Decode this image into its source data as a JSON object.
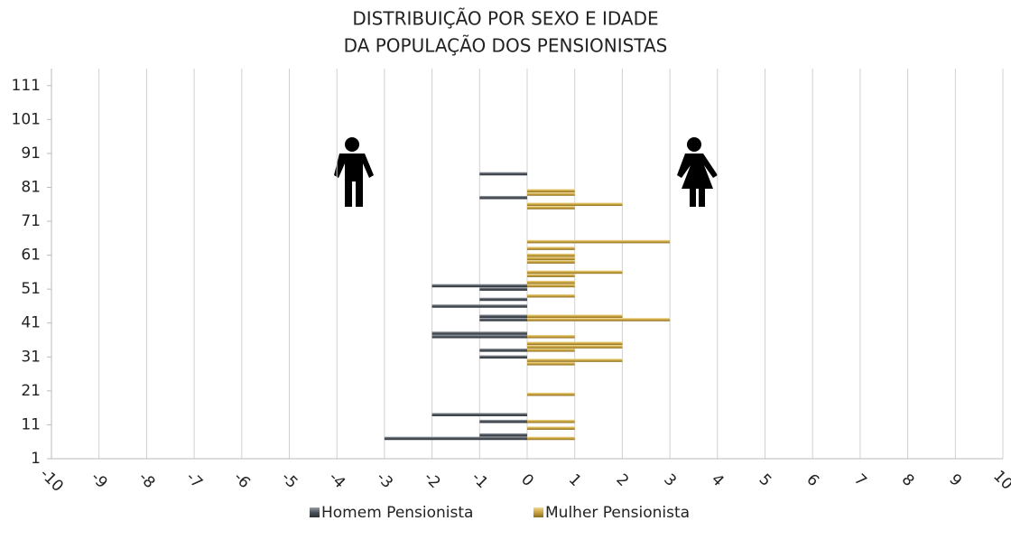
{
  "chart_data": {
    "type": "bar",
    "orientation": "horizontal",
    "title": "DISTRIBUIÇÃO POR SEXO E IDADE",
    "subtitle": "DA POPULAÇÃO DOS PENSIONISTAS",
    "xlim": [
      -10,
      10
    ],
    "xticks": [
      -10,
      -9,
      -8,
      -7,
      -6,
      -5,
      -4,
      -3,
      -2,
      -1,
      0,
      1,
      2,
      3,
      4,
      5,
      6,
      7,
      8,
      9,
      10
    ],
    "ylim": [
      1,
      116
    ],
    "yticks": [
      1,
      11,
      21,
      31,
      41,
      51,
      61,
      71,
      81,
      91,
      101,
      111
    ],
    "grid": true,
    "legend": "bottom",
    "series": [
      {
        "name": "Homem Pensionista",
        "color": "#4b5159",
        "y": [
          85,
          78,
          52,
          51,
          48,
          46,
          43,
          42,
          38,
          37,
          33,
          31,
          14,
          12,
          8,
          7
        ],
        "values": [
          -1,
          -1,
          -2,
          -1,
          -1,
          -2,
          -1,
          -1,
          -2,
          -2,
          -1,
          -1,
          -2,
          -1,
          -1,
          -3
        ]
      },
      {
        "name": "Mulher Pensionista",
        "color": "#c9a33e",
        "y": [
          80,
          79,
          76,
          75,
          65,
          63,
          61,
          60,
          59,
          56,
          55,
          53,
          52,
          49,
          43,
          42,
          37,
          35,
          34,
          33,
          30,
          29,
          20,
          12,
          10,
          7
        ],
        "values": [
          1,
          1,
          2,
          1,
          3,
          1,
          1,
          1,
          1,
          2,
          1,
          1,
          1,
          1,
          2,
          3,
          1,
          2,
          2,
          1,
          2,
          1,
          1,
          1,
          1,
          1
        ]
      }
    ]
  }
}
